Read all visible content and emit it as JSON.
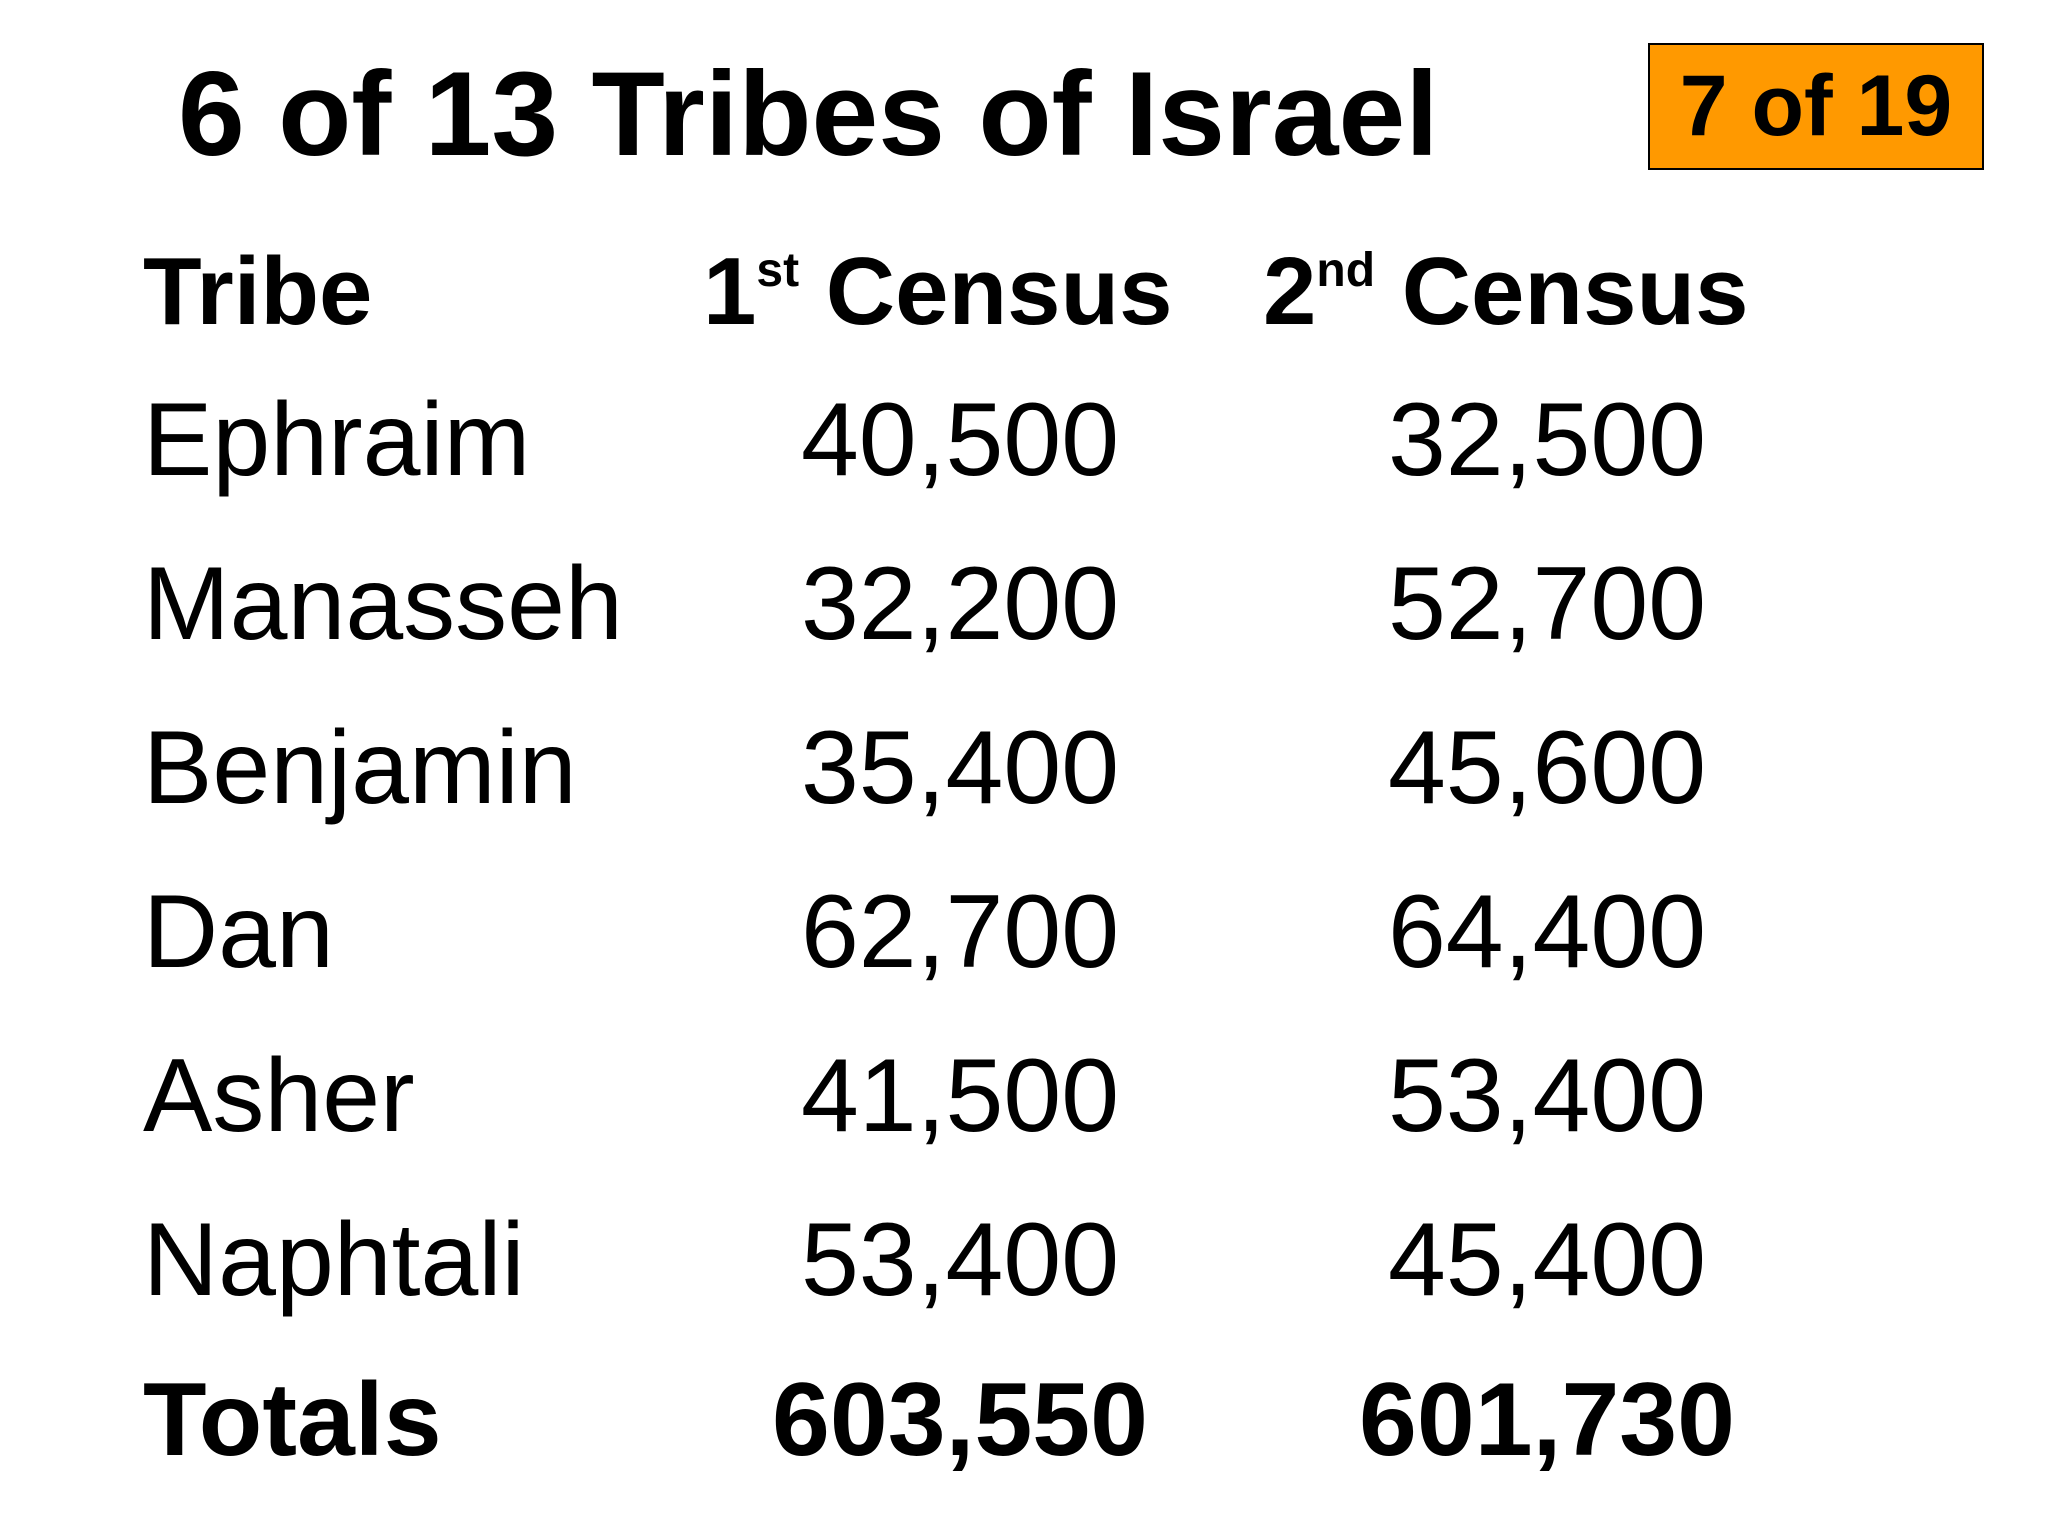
{
  "slide": {
    "title": "6 of 13 Tribes of Israel",
    "badge": {
      "text": "7 of 19",
      "color": "#ff9900"
    }
  },
  "table": {
    "headers": {
      "tribe": "Tribe",
      "first_num": "1",
      "first_sup": "st",
      "first_word": "Census",
      "second_num": "2",
      "second_sup": "nd",
      "second_word": "Census"
    },
    "rows": [
      {
        "tribe": "Ephraim",
        "first": "40,500",
        "second": "32,500"
      },
      {
        "tribe": "Manasseh",
        "first": "32,200",
        "second": "52,700"
      },
      {
        "tribe": "Benjamin",
        "first": "35,400",
        "second": "45,600"
      },
      {
        "tribe": "Dan",
        "first": "62,700",
        "second": "64,400"
      },
      {
        "tribe": "Asher",
        "first": "41,500",
        "second": "53,400"
      },
      {
        "tribe": "Naphtali",
        "first": "53,400",
        "second": "45,400"
      }
    ],
    "totals": {
      "label": "Totals",
      "first": "603,550",
      "second": "601,730"
    }
  }
}
